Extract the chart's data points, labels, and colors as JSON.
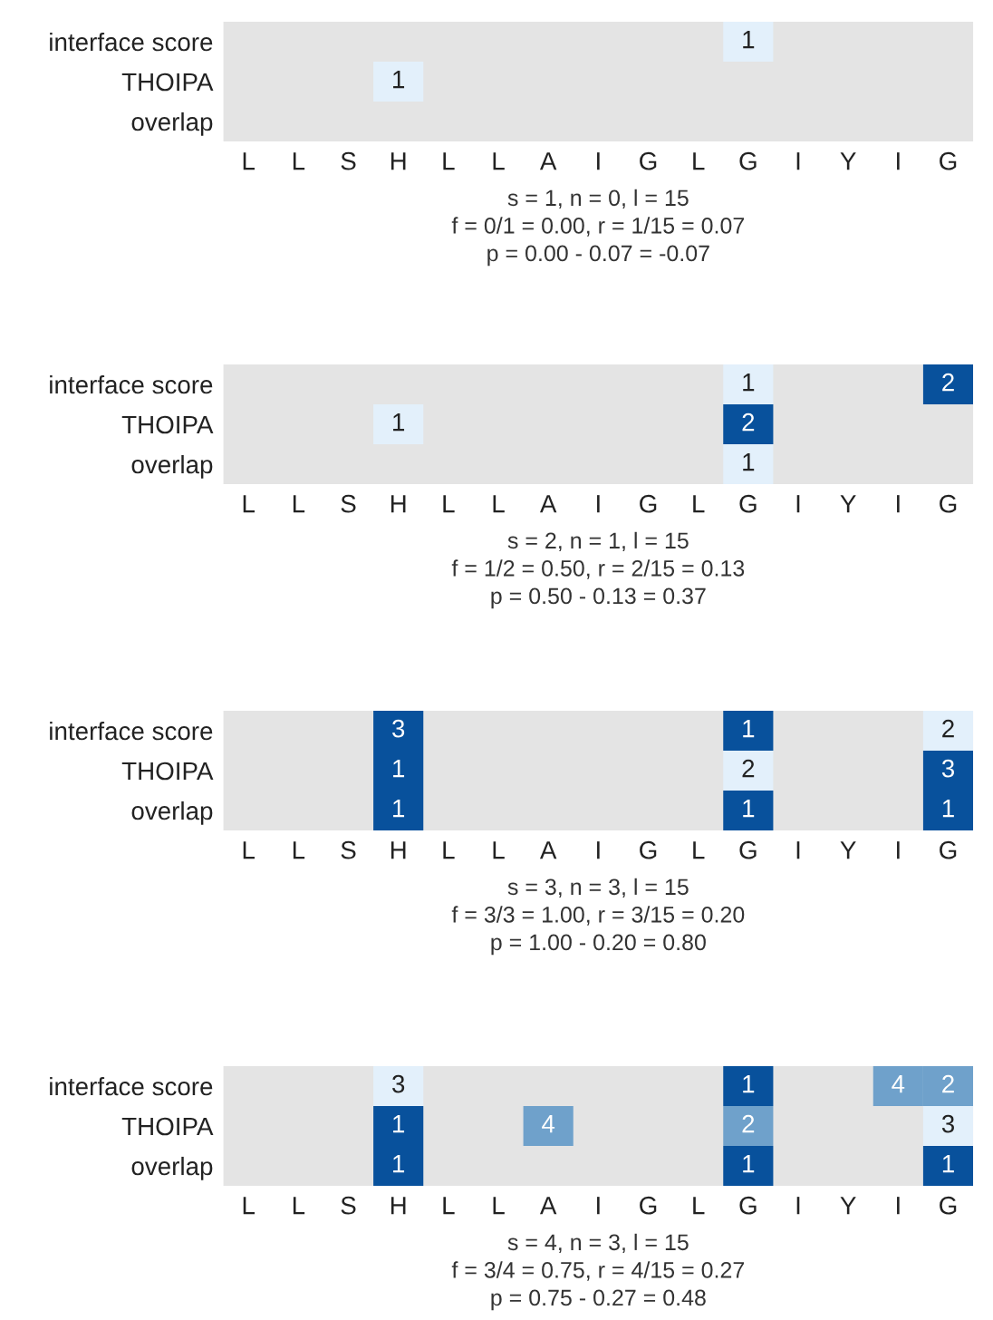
{
  "chart_data": [
    {
      "type": "heatmap",
      "data_labels": true,
      "categories": [
        "L",
        "L",
        "S",
        "H",
        "L",
        "L",
        "A",
        "I",
        "G",
        "L",
        "G",
        "I",
        "Y",
        "I",
        "G"
      ],
      "y_categories": [
        "interface score",
        "THOIPA",
        "overlap"
      ],
      "cells": [
        [
          null,
          null,
          null,
          null,
          null,
          null,
          null,
          null,
          null,
          null,
          1,
          null,
          null,
          null,
          null
        ],
        [
          null,
          null,
          null,
          1,
          null,
          null,
          null,
          null,
          null,
          null,
          null,
          null,
          null,
          null,
          null
        ],
        [
          null,
          null,
          null,
          null,
          null,
          null,
          null,
          null,
          null,
          null,
          null,
          null,
          null,
          null,
          null
        ]
      ],
      "colors": [
        [
          null,
          null,
          null,
          null,
          null,
          null,
          null,
          null,
          null,
          null,
          "#e3f0fb",
          null,
          null,
          null,
          null
        ],
        [
          null,
          null,
          null,
          "#e3f0fb",
          null,
          null,
          null,
          null,
          null,
          null,
          null,
          null,
          null,
          null,
          null
        ],
        [
          null,
          null,
          null,
          null,
          null,
          null,
          null,
          null,
          null,
          null,
          null,
          null,
          null,
          null,
          null
        ]
      ],
      "annotations": [
        "s = 1, n = 0, l = 15",
        "f = 0/1 = 0.00, r = 1/15 = 0.07",
        "p = 0.00 - 0.07 = -0.07"
      ]
    },
    {
      "type": "heatmap",
      "data_labels": true,
      "categories": [
        "L",
        "L",
        "S",
        "H",
        "L",
        "L",
        "A",
        "I",
        "G",
        "L",
        "G",
        "I",
        "Y",
        "I",
        "G"
      ],
      "y_categories": [
        "interface score",
        "THOIPA",
        "overlap"
      ],
      "cells": [
        [
          null,
          null,
          null,
          null,
          null,
          null,
          null,
          null,
          null,
          null,
          1,
          null,
          null,
          null,
          2
        ],
        [
          null,
          null,
          null,
          1,
          null,
          null,
          null,
          null,
          null,
          null,
          2,
          null,
          null,
          null,
          null
        ],
        [
          null,
          null,
          null,
          null,
          null,
          null,
          null,
          null,
          null,
          null,
          1,
          null,
          null,
          null,
          null
        ]
      ],
      "colors": [
        [
          null,
          null,
          null,
          null,
          null,
          null,
          null,
          null,
          null,
          null,
          "#e3f0fb",
          null,
          null,
          null,
          "#08519c"
        ],
        [
          null,
          null,
          null,
          "#e3f0fb",
          null,
          null,
          null,
          null,
          null,
          null,
          "#08519c",
          null,
          null,
          null,
          null
        ],
        [
          null,
          null,
          null,
          null,
          null,
          null,
          null,
          null,
          null,
          null,
          "#e3f0fb",
          null,
          null,
          null,
          null
        ]
      ],
      "annotations": [
        "s = 2, n = 1, l = 15",
        "f = 1/2 = 0.50, r = 2/15 = 0.13",
        "p = 0.50 - 0.13 = 0.37"
      ]
    },
    {
      "type": "heatmap",
      "data_labels": true,
      "categories": [
        "L",
        "L",
        "S",
        "H",
        "L",
        "L",
        "A",
        "I",
        "G",
        "L",
        "G",
        "I",
        "Y",
        "I",
        "G"
      ],
      "y_categories": [
        "interface score",
        "THOIPA",
        "overlap"
      ],
      "cells": [
        [
          null,
          null,
          null,
          3,
          null,
          null,
          null,
          null,
          null,
          null,
          1,
          null,
          null,
          null,
          2
        ],
        [
          null,
          null,
          null,
          1,
          null,
          null,
          null,
          null,
          null,
          null,
          2,
          null,
          null,
          null,
          3
        ],
        [
          null,
          null,
          null,
          1,
          null,
          null,
          null,
          null,
          null,
          null,
          1,
          null,
          null,
          null,
          1
        ]
      ],
      "colors": [
        [
          null,
          null,
          null,
          "#08519c",
          null,
          null,
          null,
          null,
          null,
          null,
          "#08519c",
          null,
          null,
          null,
          "#e3f0fb"
        ],
        [
          null,
          null,
          null,
          "#08519c",
          null,
          null,
          null,
          null,
          null,
          null,
          "#e3f0fb",
          null,
          null,
          null,
          "#08519c"
        ],
        [
          null,
          null,
          null,
          "#08519c",
          null,
          null,
          null,
          null,
          null,
          null,
          "#08519c",
          null,
          null,
          null,
          "#08519c"
        ]
      ],
      "annotations": [
        "s = 3, n = 3, l = 15",
        "f = 3/3 = 1.00, r = 3/15 = 0.20",
        "p = 1.00 - 0.20 = 0.80"
      ]
    },
    {
      "type": "heatmap",
      "data_labels": true,
      "categories": [
        "L",
        "L",
        "S",
        "H",
        "L",
        "L",
        "A",
        "I",
        "G",
        "L",
        "G",
        "I",
        "Y",
        "I",
        "G"
      ],
      "y_categories": [
        "interface score",
        "THOIPA",
        "overlap"
      ],
      "cells": [
        [
          null,
          null,
          null,
          3,
          null,
          null,
          null,
          null,
          null,
          null,
          1,
          null,
          null,
          4,
          2
        ],
        [
          null,
          null,
          null,
          1,
          null,
          null,
          4,
          null,
          null,
          null,
          2,
          null,
          null,
          null,
          3
        ],
        [
          null,
          null,
          null,
          1,
          null,
          null,
          null,
          null,
          null,
          null,
          1,
          null,
          null,
          null,
          1
        ]
      ],
      "colors": [
        [
          null,
          null,
          null,
          "#e3f0fb",
          null,
          null,
          null,
          null,
          null,
          null,
          "#08519c",
          null,
          null,
          "#6fa1cb",
          "#6fa1cb"
        ],
        [
          null,
          null,
          null,
          "#08519c",
          null,
          null,
          "#6fa1cb",
          null,
          null,
          null,
          "#6fa1cb",
          null,
          null,
          null,
          "#e3f0fb"
        ],
        [
          null,
          null,
          null,
          "#08519c",
          null,
          null,
          null,
          null,
          null,
          null,
          "#08519c",
          null,
          null,
          null,
          "#08519c"
        ]
      ],
      "annotations": [
        "s = 4, n = 3, l = 15",
        "f = 3/4 = 0.75, r = 4/15 = 0.27",
        "p = 0.75 - 0.27 = 0.48"
      ]
    }
  ]
}
